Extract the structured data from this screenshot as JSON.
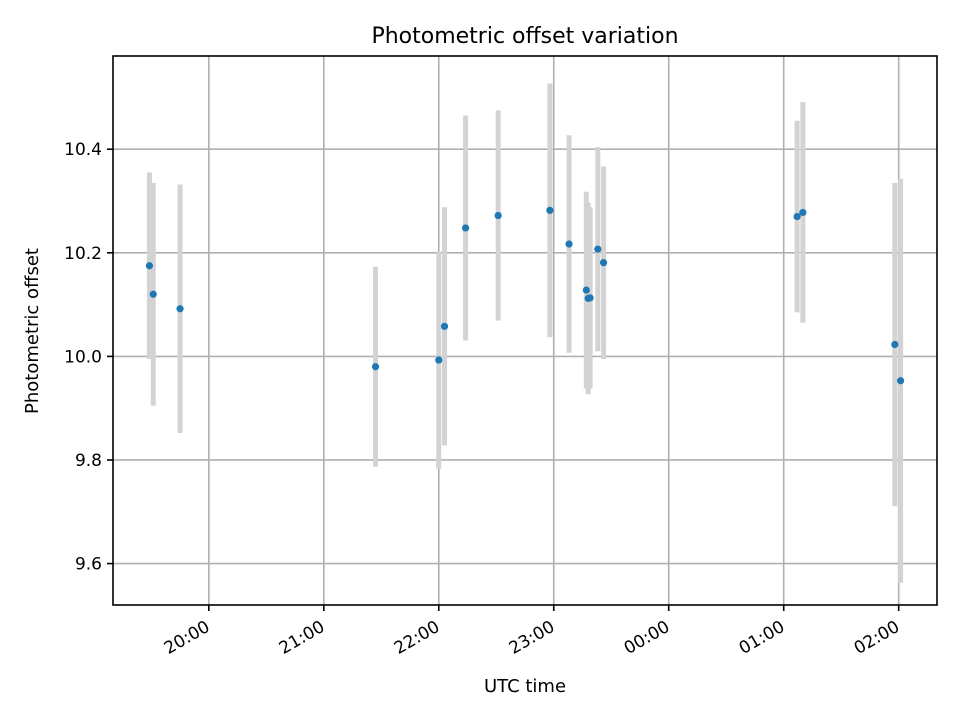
{
  "chart_data": {
    "type": "scatter",
    "title": "Photometric offset variation",
    "xlabel": "UTC time",
    "ylabel": "Photometric offset",
    "x_axis": {
      "type": "time",
      "range": [
        "19:10",
        "02:20"
      ],
      "ticks": [
        "20:00",
        "21:00",
        "22:00",
        "23:00",
        "00:00",
        "01:00",
        "02:00"
      ],
      "tick_label_rotation": 30
    },
    "y_axis": {
      "range": [
        9.52,
        10.58
      ],
      "ticks": [
        9.6,
        9.8,
        10.0,
        10.2,
        10.4
      ],
      "tick_labels": [
        "9.6",
        "9.8",
        "10.0",
        "10.2",
        "10.4"
      ]
    },
    "grid": true,
    "marker_color": "#1f77b4",
    "errorbar_color": "#d3d3d3",
    "points": [
      {
        "time": "19:29",
        "y": 10.175,
        "err": 0.18
      },
      {
        "time": "19:31",
        "y": 10.12,
        "err": 0.215
      },
      {
        "time": "19:45",
        "y": 10.092,
        "err": 0.24
      },
      {
        "time": "21:27",
        "y": 9.98,
        "err": 0.193
      },
      {
        "time": "22:00",
        "y": 9.993,
        "err": 0.21
      },
      {
        "time": "22:03",
        "y": 10.058,
        "err": 0.23
      },
      {
        "time": "22:14",
        "y": 10.248,
        "err": 0.217
      },
      {
        "time": "22:31",
        "y": 10.272,
        "err": 0.203
      },
      {
        "time": "22:58",
        "y": 10.282,
        "err": 0.245
      },
      {
        "time": "23:08",
        "y": 10.217,
        "err": 0.21
      },
      {
        "time": "23:17",
        "y": 10.128,
        "err": 0.19
      },
      {
        "time": "23:18",
        "y": 10.112,
        "err": 0.185
      },
      {
        "time": "23:19",
        "y": 10.113,
        "err": 0.175
      },
      {
        "time": "23:23",
        "y": 10.207,
        "err": 0.197
      },
      {
        "time": "23:26",
        "y": 10.181,
        "err": 0.186
      },
      {
        "time": "01:07",
        "y": 10.27,
        "err": 0.185
      },
      {
        "time": "01:10",
        "y": 10.278,
        "err": 0.213
      },
      {
        "time": "01:58",
        "y": 10.023,
        "err": 0.312
      },
      {
        "time": "02:01",
        "y": 9.953,
        "err": 0.39
      }
    ]
  }
}
